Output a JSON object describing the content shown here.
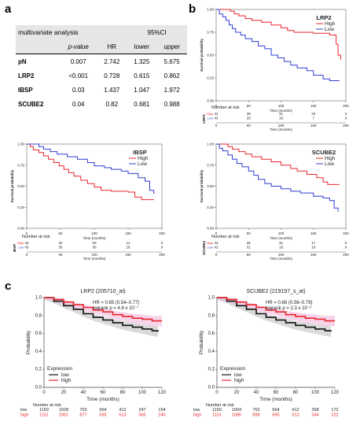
{
  "panel_labels": {
    "a": "a",
    "b": "b",
    "c": "c"
  },
  "table": {
    "title": "multivariate analysis",
    "ci_header": "95%CI",
    "columns": [
      "p-value",
      "HR",
      "lower",
      "upper"
    ],
    "rows": [
      {
        "name": "pN",
        "values": [
          "0.007",
          "2.742",
          "1.325",
          "5.675"
        ]
      },
      {
        "name": "LRP2",
        "values": [
          "<0.001",
          "0.728",
          "0.615",
          "0.862"
        ]
      },
      {
        "name": "IBSP",
        "values": [
          "0.03",
          "1.437",
          "1.047",
          "1.972"
        ]
      },
      {
        "name": "SCUBE2",
        "values": [
          "0.04",
          "0.82",
          "0.681",
          "0.988"
        ]
      }
    ]
  },
  "chart_data": [
    {
      "type": "line",
      "id": "km-lrp2",
      "title": "LRP2",
      "xlabel": "Time (months)",
      "ylabel": "Survival probability",
      "xlim": [
        0,
        200
      ],
      "ylim": [
        0,
        1
      ],
      "xticks": [
        0,
        50,
        100,
        150,
        200
      ],
      "yticks": [
        0.0,
        0.25,
        0.5,
        0.75,
        1.0
      ],
      "legend": {
        "position": "top-right",
        "entries": [
          "High",
          "Low"
        ]
      },
      "series": [
        {
          "name": "High",
          "color": "#e8262b",
          "points": [
            [
              0,
              1
            ],
            [
              10,
              1
            ],
            [
              22,
              0.98
            ],
            [
              28,
              0.95
            ],
            [
              35,
              0.93
            ],
            [
              45,
              0.9
            ],
            [
              55,
              0.88
            ],
            [
              70,
              0.86
            ],
            [
              85,
              0.83
            ],
            [
              100,
              0.8
            ],
            [
              110,
              0.77
            ],
            [
              120,
              0.75
            ],
            [
              150,
              0.74
            ],
            [
              175,
              0.72
            ],
            [
              185,
              0.62
            ],
            [
              188,
              0.5
            ],
            [
              192,
              0.45
            ]
          ]
        },
        {
          "name": "Low",
          "color": "#2f3fd0",
          "points": [
            [
              0,
              1
            ],
            [
              5,
              0.95
            ],
            [
              10,
              0.92
            ],
            [
              15,
              0.88
            ],
            [
              20,
              0.83
            ],
            [
              25,
              0.79
            ],
            [
              30,
              0.75
            ],
            [
              38,
              0.72
            ],
            [
              45,
              0.68
            ],
            [
              55,
              0.65
            ],
            [
              65,
              0.6
            ],
            [
              75,
              0.57
            ],
            [
              85,
              0.5
            ],
            [
              95,
              0.47
            ],
            [
              105,
              0.43
            ],
            [
              115,
              0.39
            ],
            [
              125,
              0.36
            ],
            [
              140,
              0.33
            ],
            [
              150,
              0.28
            ],
            [
              165,
              0.24
            ],
            [
              175,
              0.22
            ],
            [
              190,
              0.22
            ]
          ]
        }
      ],
      "risk_table": {
        "title": "Number at risk",
        "side_label": "LRP2",
        "rows": [
          {
            "name": "High",
            "values": [
              42,
              38,
              31,
              20,
              0
            ]
          },
          {
            "name": "Low",
            "values": [
              43,
              29,
              19,
              7,
              0
            ]
          }
        ]
      }
    },
    {
      "type": "line",
      "id": "km-ibsp",
      "title": "IBSP",
      "xlabel": "Time (months)",
      "ylabel": "Survival probability",
      "xlim": [
        0,
        200
      ],
      "ylim": [
        0,
        1
      ],
      "xticks": [
        0,
        50,
        100,
        150,
        200
      ],
      "yticks": [
        0.0,
        0.25,
        0.5,
        0.75,
        1.0
      ],
      "legend": {
        "position": "top-right",
        "entries": [
          "High",
          "Low"
        ]
      },
      "series": [
        {
          "name": "High",
          "color": "#e8262b",
          "points": [
            [
              0,
              1
            ],
            [
              5,
              0.97
            ],
            [
              10,
              0.93
            ],
            [
              18,
              0.9
            ],
            [
              25,
              0.86
            ],
            [
              32,
              0.82
            ],
            [
              40,
              0.78
            ],
            [
              48,
              0.74
            ],
            [
              55,
              0.7
            ],
            [
              62,
              0.66
            ],
            [
              70,
              0.62
            ],
            [
              80,
              0.57
            ],
            [
              90,
              0.53
            ],
            [
              100,
              0.49
            ],
            [
              110,
              0.45
            ],
            [
              125,
              0.44
            ],
            [
              150,
              0.43
            ],
            [
              160,
              0.37
            ],
            [
              170,
              0.34
            ],
            [
              188,
              0.34
            ]
          ]
        },
        {
          "name": "Low",
          "color": "#2f3fd0",
          "points": [
            [
              0,
              1
            ],
            [
              10,
              1
            ],
            [
              18,
              0.97
            ],
            [
              25,
              0.94
            ],
            [
              35,
              0.91
            ],
            [
              45,
              0.88
            ],
            [
              60,
              0.85
            ],
            [
              75,
              0.82
            ],
            [
              90,
              0.78
            ],
            [
              100,
              0.74
            ],
            [
              115,
              0.72
            ],
            [
              125,
              0.7
            ],
            [
              140,
              0.68
            ],
            [
              150,
              0.65
            ],
            [
              165,
              0.6
            ],
            [
              175,
              0.56
            ],
            [
              182,
              0.45
            ],
            [
              188,
              0.41
            ]
          ]
        }
      ],
      "risk_table": {
        "title": "Number at risk",
        "side_label": "IBSP",
        "rows": [
          {
            "name": "High",
            "values": [
              42,
              32,
              20,
              11,
              0
            ]
          },
          {
            "name": "Low",
            "values": [
              43,
              35,
              30,
              16,
              0
            ]
          }
        ]
      }
    },
    {
      "type": "line",
      "id": "km-scube2",
      "title": "SCUBE2",
      "xlabel": "Time (months)",
      "ylabel": "Survival probability",
      "xlim": [
        0,
        200
      ],
      "ylim": [
        0,
        1
      ],
      "xticks": [
        0,
        50,
        100,
        150,
        200
      ],
      "yticks": [
        0.0,
        0.25,
        0.5,
        0.75,
        1.0
      ],
      "legend": {
        "position": "top-right",
        "entries": [
          "High",
          "Low"
        ]
      },
      "series": [
        {
          "name": "High",
          "color": "#e8262b",
          "points": [
            [
              0,
              1
            ],
            [
              10,
              1
            ],
            [
              18,
              0.97
            ],
            [
              25,
              0.94
            ],
            [
              35,
              0.91
            ],
            [
              45,
              0.88
            ],
            [
              55,
              0.85
            ],
            [
              70,
              0.82
            ],
            [
              85,
              0.79
            ],
            [
              100,
              0.75
            ],
            [
              115,
              0.71
            ],
            [
              125,
              0.68
            ],
            [
              140,
              0.64
            ],
            [
              155,
              0.6
            ],
            [
              165,
              0.55
            ],
            [
              172,
              0.52
            ],
            [
              190,
              0.52
            ]
          ]
        },
        {
          "name": "Low",
          "color": "#2f3fd0",
          "points": [
            [
              0,
              1
            ],
            [
              5,
              0.95
            ],
            [
              10,
              0.92
            ],
            [
              18,
              0.87
            ],
            [
              25,
              0.82
            ],
            [
              32,
              0.77
            ],
            [
              40,
              0.73
            ],
            [
              50,
              0.68
            ],
            [
              58,
              0.63
            ],
            [
              65,
              0.58
            ],
            [
              75,
              0.53
            ],
            [
              85,
              0.5
            ],
            [
              100,
              0.47
            ],
            [
              115,
              0.44
            ],
            [
              130,
              0.42
            ],
            [
              150,
              0.38
            ],
            [
              165,
              0.36
            ],
            [
              175,
              0.33
            ],
            [
              182,
              0.24
            ],
            [
              188,
              0.2
            ]
          ]
        }
      ],
      "risk_table": {
        "title": "Number at risk",
        "side_label": "SCUBE2",
        "rows": [
          {
            "name": "High",
            "values": [
              43,
              36,
              31,
              17,
              0
            ]
          },
          {
            "name": "Low",
            "values": [
              42,
              31,
              19,
              10,
              0
            ]
          }
        ]
      }
    },
    {
      "type": "line",
      "id": "kmplot-lrp2",
      "title": "LRP2 (205710_at)",
      "annotation": [
        "HR = 0.65 (0.54–0.77)",
        "logrank p = 4.6 x 10⁻⁷"
      ],
      "xlabel": "Time (months)",
      "ylabel": "Probability",
      "xlim": [
        0,
        120
      ],
      "ylim": [
        0,
        1
      ],
      "xticks": [
        0,
        20,
        40,
        60,
        80,
        100,
        120
      ],
      "yticks": [
        0.0,
        0.2,
        0.4,
        0.6,
        0.8,
        1.0
      ],
      "legend": {
        "title": "Expression",
        "position": "bottom-left",
        "entries": [
          "low",
          "high"
        ]
      },
      "series": [
        {
          "name": "low",
          "color": "#111111",
          "points": [
            [
              0,
              1
            ],
            [
              10,
              0.96
            ],
            [
              20,
              0.91
            ],
            [
              30,
              0.87
            ],
            [
              40,
              0.82
            ],
            [
              50,
              0.78
            ],
            [
              60,
              0.75
            ],
            [
              70,
              0.72
            ],
            [
              80,
              0.69
            ],
            [
              90,
              0.67
            ],
            [
              100,
              0.65
            ],
            [
              110,
              0.63
            ],
            [
              116,
              0.62
            ]
          ]
        },
        {
          "name": "high",
          "color": "#e8262b",
          "points": [
            [
              0,
              1
            ],
            [
              10,
              0.98
            ],
            [
              20,
              0.95
            ],
            [
              30,
              0.92
            ],
            [
              40,
              0.89
            ],
            [
              50,
              0.86
            ],
            [
              60,
              0.84
            ],
            [
              70,
              0.81
            ],
            [
              80,
              0.79
            ],
            [
              90,
              0.77
            ],
            [
              100,
              0.76
            ],
            [
              110,
              0.74
            ],
            [
              120,
              0.74
            ]
          ]
        }
      ],
      "risk_table": {
        "title": "Number at risk",
        "x": [
          0,
          20,
          40,
          60,
          80,
          100,
          120
        ],
        "rows": [
          {
            "name": "low",
            "values": [
              1150,
              1028,
              763,
              564,
              412,
              247,
              154
            ]
          },
          {
            "name": "high",
            "values": [
              1151,
              1061,
              877,
              695,
              513,
              365,
              240
            ]
          }
        ]
      }
    },
    {
      "type": "line",
      "id": "kmplot-scube2",
      "title": "SCUBE2 (219197_s_at)",
      "annotation": [
        "HR = 0.66 (0.56–0.79)",
        "logrank p = 2.3 x 10⁻⁶"
      ],
      "xlabel": "Time (months)",
      "ylabel": "Probability",
      "xlim": [
        0,
        120
      ],
      "ylim": [
        0,
        1
      ],
      "xticks": [
        0,
        20,
        40,
        60,
        80,
        100,
        120
      ],
      "yticks": [
        0.0,
        0.2,
        0.4,
        0.6,
        0.8,
        1.0
      ],
      "legend": {
        "title": "Expression",
        "position": "bottom-left",
        "entries": [
          "low",
          "high"
        ]
      },
      "series": [
        {
          "name": "low",
          "color": "#111111",
          "points": [
            [
              0,
              1
            ],
            [
              10,
              0.96
            ],
            [
              20,
              0.91
            ],
            [
              30,
              0.87
            ],
            [
              40,
              0.82
            ],
            [
              50,
              0.78
            ],
            [
              60,
              0.75
            ],
            [
              70,
              0.72
            ],
            [
              80,
              0.69
            ],
            [
              90,
              0.67
            ],
            [
              100,
              0.65
            ],
            [
              110,
              0.63
            ],
            [
              116,
              0.62
            ]
          ]
        },
        {
          "name": "high",
          "color": "#e8262b",
          "points": [
            [
              0,
              1
            ],
            [
              10,
              0.98
            ],
            [
              20,
              0.95
            ],
            [
              30,
              0.92
            ],
            [
              40,
              0.89
            ],
            [
              50,
              0.86
            ],
            [
              60,
              0.84
            ],
            [
              70,
              0.81
            ],
            [
              80,
              0.79
            ],
            [
              90,
              0.77
            ],
            [
              100,
              0.76
            ],
            [
              110,
              0.74
            ],
            [
              120,
              0.74
            ]
          ]
        }
      ],
      "risk_table": {
        "title": "Number at risk",
        "x": [
          0,
          20,
          40,
          60,
          80,
          100,
          120
        ],
        "rows": [
          {
            "name": "low",
            "values": [
              1150,
              1004,
              762,
              564,
              412,
              268,
              172
            ]
          },
          {
            "name": "high",
            "values": [
              1151,
              1085,
              898,
              695,
              513,
              344,
              222
            ]
          }
        ]
      }
    }
  ]
}
